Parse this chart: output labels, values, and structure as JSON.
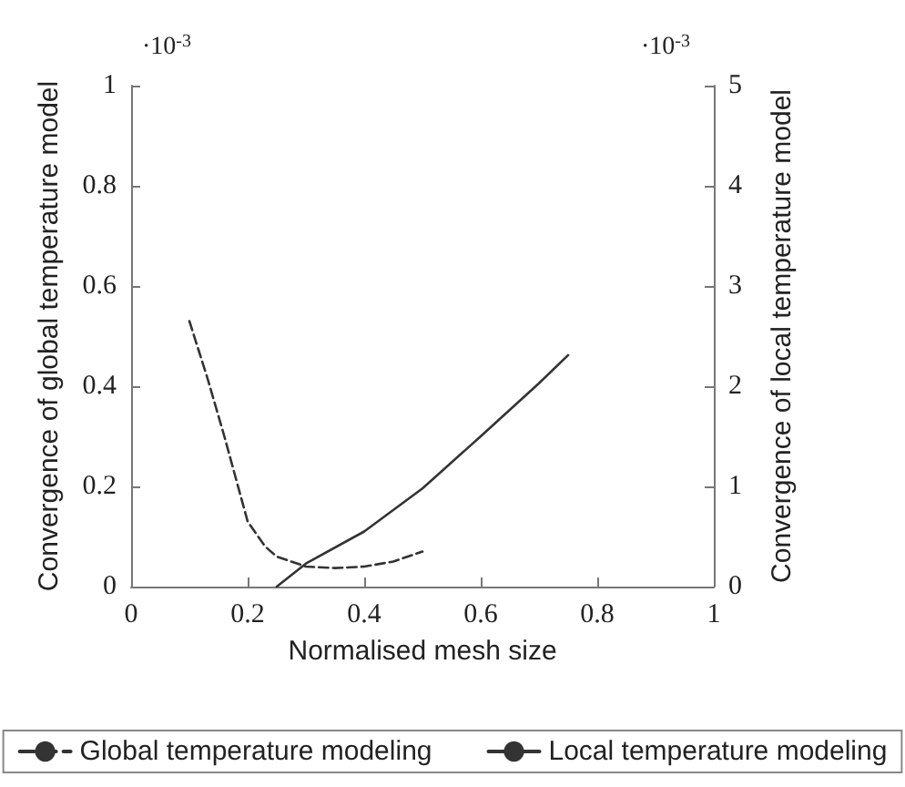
{
  "chart_data": {
    "type": "line",
    "xlabel": "Normalised mesh size",
    "ylabel": "Convergence of global temperature model",
    "y2label": "Convergence of local temperature model",
    "annotations": [
      "·10$^{-3}$",
      "·10$^{-3}$"
    ],
    "xlim": [
      0,
      1
    ],
    "xticks": [
      0,
      0.2,
      0.4,
      0.6,
      0.8,
      1
    ],
    "ylim": [
      0,
      1
    ],
    "yticks": [
      0,
      0.2,
      0.4,
      0.6,
      0.8,
      1
    ],
    "y2lim": [
      0,
      5
    ],
    "y2ticks": [
      0,
      1,
      2,
      3,
      4,
      5
    ],
    "grid": false,
    "legend": "bottom",
    "marker": "none",
    "series": [
      {
        "name": "Global temperature modeling",
        "color": "#333333",
        "line_style": "dashed",
        "x": [
          0.1,
          0.13,
          0.16,
          0.2,
          0.23,
          0.25,
          0.3,
          0.35,
          0.4,
          0.45,
          0.5
        ],
        "values": [
          0.53,
          0.42,
          0.3,
          0.13,
          0.08,
          0.06,
          0.04,
          0.037,
          0.04,
          0.05,
          0.07
        ]
      },
      {
        "name": "Local temperature modeling",
        "color": "#333333",
        "line_style": "solid",
        "axis": "y2",
        "x": [
          0.25,
          0.3,
          0.4,
          0.5,
          0.6,
          0.7,
          0.75
        ],
        "values": [
          0,
          0.23,
          0.55,
          0.98,
          1.5,
          2.03,
          2.31
        ]
      }
    ]
  }
}
